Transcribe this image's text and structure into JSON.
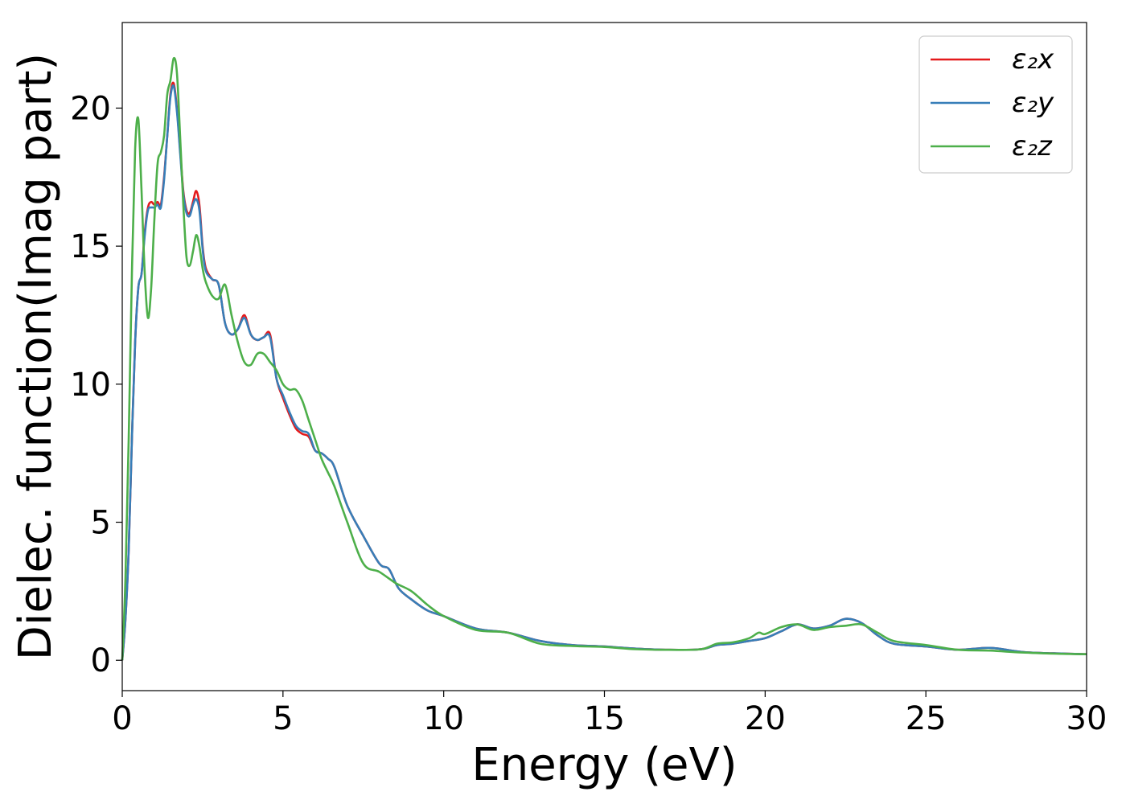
{
  "chart_data": {
    "type": "line",
    "xlabel": "Energy (eV)",
    "ylabel": "Dielec. function(Imag part)",
    "xlim": [
      0,
      30
    ],
    "ylim": [
      -1.1,
      23.1
    ],
    "xticks": [
      0,
      5,
      10,
      15,
      20,
      25,
      30
    ],
    "yticks": [
      0,
      5,
      10,
      15,
      20
    ],
    "grid": false,
    "legend_position": "top-right",
    "series": [
      {
        "name": "ε₂x",
        "color": "#e41a1c",
        "x": [
          0,
          0.1,
          0.2,
          0.3,
          0.4,
          0.5,
          0.6,
          0.7,
          0.8,
          0.9,
          1.0,
          1.1,
          1.2,
          1.3,
          1.4,
          1.5,
          1.6,
          1.7,
          1.8,
          1.9,
          2.0,
          2.1,
          2.2,
          2.3,
          2.4,
          2.5,
          2.6,
          2.8,
          3.0,
          3.2,
          3.4,
          3.6,
          3.8,
          4.0,
          4.2,
          4.4,
          4.6,
          4.8,
          5.0,
          5.2,
          5.4,
          5.6,
          5.8,
          6.0,
          6.2,
          6.4,
          6.6,
          7.0,
          7.5,
          8.0,
          8.3,
          8.6,
          9.0,
          9.5,
          10.0,
          11.0,
          12.0,
          13.0,
          14.0,
          15.0,
          16.0,
          17.0,
          18.0,
          18.5,
          19.0,
          19.5,
          20.0,
          20.5,
          21.0,
          21.5,
          22.0,
          22.5,
          23.0,
          23.5,
          24.0,
          25.0,
          26.0,
          27.0,
          28.0,
          29.0,
          30.0
        ],
        "values": [
          0.0,
          1.5,
          4.0,
          8.0,
          11.5,
          13.5,
          14.0,
          15.5,
          16.4,
          16.6,
          16.5,
          16.6,
          16.5,
          17.5,
          19.0,
          20.5,
          20.9,
          20.0,
          18.5,
          17.0,
          16.3,
          16.2,
          16.6,
          17.0,
          16.5,
          15.0,
          14.2,
          13.8,
          13.6,
          12.2,
          11.8,
          12.0,
          12.5,
          11.8,
          11.6,
          11.7,
          11.8,
          10.2,
          9.5,
          8.9,
          8.4,
          8.2,
          8.1,
          7.6,
          7.5,
          7.3,
          7.0,
          5.6,
          4.5,
          3.5,
          3.3,
          2.6,
          2.2,
          1.8,
          1.6,
          1.15,
          1.0,
          0.7,
          0.55,
          0.5,
          0.42,
          0.38,
          0.4,
          0.55,
          0.6,
          0.7,
          0.8,
          1.05,
          1.3,
          1.15,
          1.25,
          1.5,
          1.35,
          0.9,
          0.6,
          0.5,
          0.38,
          0.45,
          0.3,
          0.25,
          0.22
        ]
      },
      {
        "name": "ε₂y",
        "color": "#377eb8",
        "x": [
          0,
          0.1,
          0.2,
          0.3,
          0.4,
          0.5,
          0.6,
          0.7,
          0.8,
          0.9,
          1.0,
          1.1,
          1.2,
          1.3,
          1.4,
          1.5,
          1.6,
          1.7,
          1.8,
          1.9,
          2.0,
          2.1,
          2.2,
          2.3,
          2.4,
          2.5,
          2.6,
          2.8,
          3.0,
          3.2,
          3.4,
          3.6,
          3.8,
          4.0,
          4.2,
          4.4,
          4.6,
          4.8,
          5.0,
          5.2,
          5.4,
          5.6,
          5.8,
          6.0,
          6.2,
          6.4,
          6.6,
          7.0,
          7.5,
          8.0,
          8.3,
          8.6,
          9.0,
          9.5,
          10.0,
          11.0,
          12.0,
          13.0,
          14.0,
          15.0,
          16.0,
          17.0,
          18.0,
          18.5,
          19.0,
          19.5,
          20.0,
          20.5,
          21.0,
          21.5,
          22.0,
          22.5,
          23.0,
          23.5,
          24.0,
          25.0,
          26.0,
          27.0,
          28.0,
          29.0,
          30.0
        ],
        "values": [
          0.0,
          1.5,
          4.0,
          8.0,
          11.5,
          13.5,
          14.0,
          15.4,
          16.3,
          16.4,
          16.4,
          16.5,
          16.4,
          17.4,
          19.0,
          20.4,
          20.8,
          19.9,
          18.4,
          16.9,
          16.2,
          16.1,
          16.5,
          16.7,
          16.3,
          14.9,
          14.1,
          13.8,
          13.6,
          12.2,
          11.8,
          12.0,
          12.4,
          11.8,
          11.6,
          11.7,
          11.7,
          10.2,
          9.6,
          9.0,
          8.5,
          8.3,
          8.2,
          7.6,
          7.5,
          7.3,
          7.0,
          5.6,
          4.5,
          3.5,
          3.3,
          2.6,
          2.2,
          1.8,
          1.6,
          1.15,
          1.0,
          0.7,
          0.55,
          0.5,
          0.42,
          0.38,
          0.4,
          0.55,
          0.6,
          0.7,
          0.8,
          1.05,
          1.3,
          1.15,
          1.25,
          1.5,
          1.35,
          0.9,
          0.6,
          0.5,
          0.38,
          0.45,
          0.3,
          0.25,
          0.22
        ]
      },
      {
        "name": "ε₂z",
        "color": "#4daf4a",
        "x": [
          0,
          0.1,
          0.2,
          0.3,
          0.4,
          0.5,
          0.6,
          0.7,
          0.8,
          0.9,
          1.0,
          1.1,
          1.2,
          1.3,
          1.4,
          1.5,
          1.6,
          1.7,
          1.8,
          1.9,
          2.0,
          2.1,
          2.2,
          2.3,
          2.4,
          2.5,
          2.6,
          2.8,
          3.0,
          3.2,
          3.4,
          3.6,
          3.8,
          4.0,
          4.2,
          4.4,
          4.6,
          4.8,
          5.0,
          5.2,
          5.4,
          5.6,
          5.8,
          6.0,
          6.2,
          6.4,
          6.6,
          7.0,
          7.5,
          8.0,
          8.5,
          9.0,
          9.5,
          10.0,
          11.0,
          12.0,
          13.0,
          14.0,
          15.0,
          16.0,
          17.0,
          18.0,
          18.5,
          19.0,
          19.5,
          19.8,
          20.0,
          20.5,
          21.0,
          21.5,
          22.0,
          22.5,
          23.0,
          23.5,
          24.0,
          25.0,
          26.0,
          27.0,
          28.0,
          29.0,
          30.0
        ],
        "values": [
          0.0,
          3.0,
          8.0,
          14.0,
          18.5,
          19.6,
          17.0,
          14.0,
          12.4,
          13.5,
          16.0,
          18.0,
          18.4,
          19.0,
          20.5,
          21.0,
          21.8,
          21.3,
          19.0,
          16.5,
          14.6,
          14.3,
          14.8,
          15.4,
          15.0,
          14.2,
          13.7,
          13.2,
          13.1,
          13.6,
          12.5,
          11.5,
          10.8,
          10.7,
          11.1,
          11.1,
          10.8,
          10.5,
          10.0,
          9.8,
          9.8,
          9.4,
          8.7,
          8.0,
          7.3,
          6.8,
          6.3,
          5.0,
          3.5,
          3.2,
          2.8,
          2.5,
          2.0,
          1.6,
          1.1,
          1.0,
          0.6,
          0.52,
          0.48,
          0.4,
          0.38,
          0.4,
          0.6,
          0.65,
          0.8,
          1.0,
          0.95,
          1.2,
          1.3,
          1.1,
          1.2,
          1.25,
          1.3,
          1.0,
          0.7,
          0.55,
          0.38,
          0.35,
          0.28,
          0.24,
          0.22
        ]
      }
    ]
  }
}
